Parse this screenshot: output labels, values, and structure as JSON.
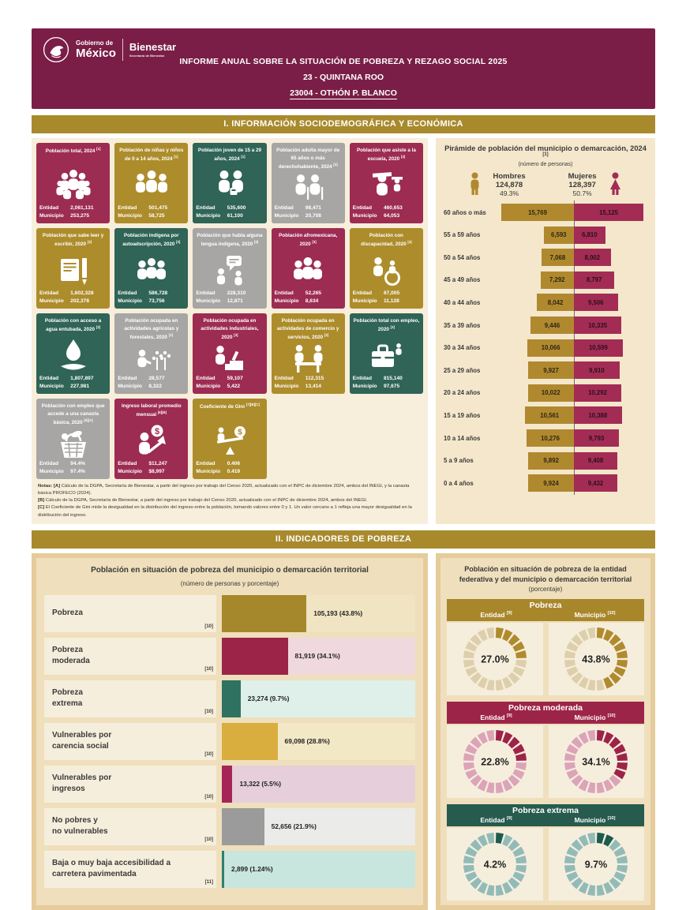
{
  "header": {
    "logo": {
      "line1": "Gobierno de",
      "line2": "México",
      "secretariat": "Bienestar",
      "secretariat_sub": "Secretaría de Bienestar"
    },
    "title": "INFORME ANUAL SOBRE LA SITUACIÓN DE POBREZA Y REZAGO SOCIAL 2025",
    "state": "23 - QUINTANA ROO",
    "municipality": "23004 - OTHÓN P. BLANCO"
  },
  "sections": {
    "s1": "I. INFORMACIÓN SOCIODEMOGRÁFICA Y ECONÓMICA",
    "s2": "II. INDICADORES DE POBREZA"
  },
  "stat_labels": {
    "entidad": "Entidad",
    "municipio": "Municipio"
  },
  "card_colors": {
    "maroon": "#9D2C52",
    "gold": "#AD8C2B",
    "green": "#2F6456",
    "gray": "#A7A6A4"
  },
  "cards": [
    {
      "title": "Población total, 2024",
      "sup": "[1]",
      "color": "maroon",
      "icon": "population-group-icon",
      "entidad": "2,061,131",
      "municipio": "253,275"
    },
    {
      "title": "Población de niñas y niños de 0 a 14 años, 2024",
      "sup": "[1]",
      "color": "gold",
      "icon": "children-icon",
      "entidad": "501,475",
      "municipio": "58,725"
    },
    {
      "title": "Población joven de 15 a 29 años, 2024",
      "sup": "[1]",
      "color": "green",
      "icon": "youth-icon",
      "entidad": "535,600",
      "municipio": "61,100"
    },
    {
      "title": "Población adulta mayor de 65 años o más derechohabiente, 2024",
      "sup": "[2]",
      "color": "gray",
      "icon": "elderly-icon",
      "entidad": "98,471",
      "municipio": "20,708"
    },
    {
      "title": "Población que asiste a la escuela, 2020",
      "sup": "[3]",
      "color": "maroon",
      "icon": "graduate-icon",
      "entidad": "460,653",
      "municipio": "64,053"
    },
    {
      "title": "Población que sabe leer y escribir, 2020",
      "sup": "[3]",
      "color": "gold",
      "icon": "book-pencil-icon",
      "entidad": "1,602,328",
      "municipio": "202,378"
    },
    {
      "title": "Población indígena por autoadscripción, 2020",
      "sup": "[3]",
      "color": "green",
      "icon": "indigenous-group-icon",
      "entidad": "586,728",
      "municipio": "73,756"
    },
    {
      "title": "Población que habla alguna lengua indígena, 2020",
      "sup": "[3]",
      "color": "gray",
      "icon": "speech-language-icon",
      "entidad": "228,310",
      "municipio": "12,871"
    },
    {
      "title": "Población afromexicana, 2020",
      "sup": "[3]",
      "color": "maroon",
      "icon": "afromexican-group-icon",
      "entidad": "52,265",
      "municipio": "8,634"
    },
    {
      "title": "Población con discapacidad, 2020",
      "sup": "[4]",
      "color": "gold",
      "icon": "wheelchair-icon",
      "entidad": "67,005",
      "municipio": "11,128"
    },
    {
      "title": "Población con acceso a agua entubada, 2020",
      "sup": "[3]",
      "color": "green",
      "icon": "water-hand-icon",
      "entidad": "1,807,897",
      "municipio": "227,981"
    },
    {
      "title": "Población ocupada en actividades agrícolas y forestales, 2020",
      "sup": "[3]",
      "color": "gray",
      "icon": "agriculture-icon",
      "entidad": "28,577",
      "municipio": "8,322"
    },
    {
      "title": "Población ocupada en actividades industriales, 2020",
      "sup": "[3]",
      "color": "maroon",
      "icon": "industry-icon",
      "entidad": "59,107",
      "municipio": "5,422"
    },
    {
      "title": "Población ocupada en actividades de comercio y servicios, 2020",
      "sup": "[3]",
      "color": "gold",
      "icon": "commerce-icon",
      "entidad": "112,315",
      "municipio": "13,414"
    },
    {
      "title": "Población total con empleo, 2020",
      "sup": "[3]",
      "color": "green",
      "icon": "briefcase-icon",
      "entidad": "815,140",
      "municipio": "97,675"
    },
    {
      "title": "Población con empleo que accede a una canasta básica, 2020",
      "sup": "[5][A]",
      "color": "gray",
      "icon": "basket-icon",
      "entidad": "94.4%",
      "municipio": "97.4%"
    },
    {
      "title": "Ingreso laboral promedio mensual",
      "sup": "[6][B]",
      "color": "maroon",
      "icon": "income-growth-icon",
      "entidad": "$11,247",
      "municipio": "$8,997"
    },
    {
      "title": "Coeficiente de Gini",
      "sup": "[7][B][C]",
      "color": "gold",
      "icon": "gini-balance-icon",
      "entidad": "0.406",
      "municipio": "0.419"
    }
  ],
  "notes": {
    "label": "Notas:",
    "lines": [
      {
        "marker": "[A]",
        "text": "Cálculo de la DGPA, Secretaría de Bienestar, a partir del ingreso por trabajo del Censo 2020, actualizado con el INPC de diciembre 2024, ambos del INEGI, y la canasta básica PROFECO (2024)."
      },
      {
        "marker": "[B]",
        "text": "Cálculo de la DGPA, Secretaría de Bienestar, a partir del ingreso por trabajo del Censo 2020, actualizado con el INPC de diciembre 2024, ambos del INEGI."
      },
      {
        "marker": "[C]",
        "text": "El Coeficiente de Gini mide la desigualdad en la distribución del ingreso entre la población, tomando valores entre 0 y 1. Un valor cercano a 1 refleja una mayor desigualdad en la distribución del ingreso."
      }
    ]
  },
  "chart_data": [
    {
      "type": "bar",
      "name": "population-pyramid",
      "title": "Pirámide de población del municipio o demarcación, 2024",
      "sup": "[1]",
      "subtitle": "(número de personas)",
      "legend": {
        "hombres": {
          "label": "Hombres",
          "total": "124,878",
          "pct": "49.3%",
          "color": "#B0892F"
        },
        "mujeres": {
          "label": "Mujeres",
          "total": "128,397",
          "pct": "50.7%",
          "color": "#A32C55"
        }
      },
      "categories": [
        "60 años o más",
        "55 a 59 años",
        "50 a 54 años",
        "45 a 49 años",
        "40 a 44 años",
        "35 a 39 años",
        "30 a 34 años",
        "25 a 29 años",
        "20 a 24 años",
        "15 a 19 años",
        "10 a 14 años",
        "5 a 9 años",
        "0 a 4 años"
      ],
      "series": [
        {
          "name": "Hombres",
          "values": [
            15769,
            6593,
            7068,
            7292,
            8042,
            9446,
            10066,
            9927,
            10022,
            10561,
            10276,
            9892,
            9924
          ]
        },
        {
          "name": "Mujeres",
          "values": [
            15125,
            6810,
            8002,
            8797,
            9506,
            10335,
            10599,
            9910,
            10292,
            10388,
            9793,
            9408,
            9432
          ]
        }
      ]
    },
    {
      "type": "bar",
      "name": "poverty-indicators",
      "title": "Población en situación de pobreza del municipio o demarcación territorial",
      "subtitle": "(número de personas y porcentaje)",
      "xlim": [
        0,
        100
      ],
      "rows": [
        {
          "label_lines": [
            "Pobreza"
          ],
          "sup": "[10]",
          "value": 105193,
          "pct": 43.8,
          "display": "105,193 (43.8%)",
          "bar": "#A5882B",
          "track": "#F0E4C2"
        },
        {
          "label_lines": [
            "Pobreza",
            "moderada"
          ],
          "sup": "[10]",
          "value": 81919,
          "pct": 34.1,
          "display": "81,919 (34.1%)",
          "bar": "#9D2449",
          "track": "#F0D8DF"
        },
        {
          "label_lines": [
            "Pobreza",
            "extrema"
          ],
          "sup": "[10]",
          "value": 23274,
          "pct": 9.7,
          "display": "23,274 (9.7%)",
          "bar": "#2F7262",
          "track": "#DFEFE9"
        },
        {
          "label_lines": [
            "Vulnerables por",
            "carencia social"
          ],
          "sup": "[10]",
          "value": 69098,
          "pct": 28.8,
          "display": "69,098 (28.8%)",
          "bar": "#D9AE3F",
          "track": "#F3E8C6"
        },
        {
          "label_lines": [
            "Vulnerables por",
            "ingresos"
          ],
          "sup": "[10]",
          "value": 13322,
          "pct": 5.5,
          "display": "13,322 (5.5%)",
          "bar": "#A52558",
          "track": "#E6CFDA"
        },
        {
          "label_lines": [
            "No pobres y",
            "no vulnerables"
          ],
          "sup": "[10]",
          "value": 52656,
          "pct": 21.9,
          "display": "52,656 (21.9%)",
          "bar": "#9B9B9B",
          "track": "#EBEBE9"
        },
        {
          "label_lines": [
            "Baja o muy baja accesibilidad a",
            "carretera pavimentada"
          ],
          "sup": "[11]",
          "value": 2899,
          "pct": 1.24,
          "display": "2,899 (1.24%)",
          "bar": "#2E8070",
          "track": "#C8E5DE"
        }
      ]
    },
    {
      "type": "donut-grid",
      "name": "poverty-comparison",
      "title": "Población en situación de pobreza de la entidad federativa y del municipio o demarcación territorial",
      "subtitle": "(porcentaje)",
      "col_labels": {
        "entidad": "Entidad",
        "entidad_sup": "[9]",
        "municipio": "Municipio",
        "municipio_sup": "[10]"
      },
      "blocks": [
        {
          "title": "Pobreza",
          "header": "#A8872B",
          "filled": "#B08A2E",
          "unfilled": "#DECFAC",
          "entidad": 27.0,
          "municipio": 43.8,
          "entidad_display": "27.0%",
          "municipio_display": "43.8%"
        },
        {
          "title": "Pobreza moderada",
          "header": "#9D2449",
          "filled": "#9D2449",
          "unfilled": "#DCA4B8",
          "entidad": 22.8,
          "municipio": 34.1,
          "entidad_display": "22.8%",
          "municipio_display": "34.1%"
        },
        {
          "title": "Pobreza extrema",
          "header": "#265B4E",
          "filled": "#1C5B4D",
          "unfilled": "#92BBB8",
          "entidad": 4.2,
          "municipio": 9.7,
          "entidad_display": "4.2%",
          "municipio_display": "9.7%"
        }
      ]
    }
  ]
}
